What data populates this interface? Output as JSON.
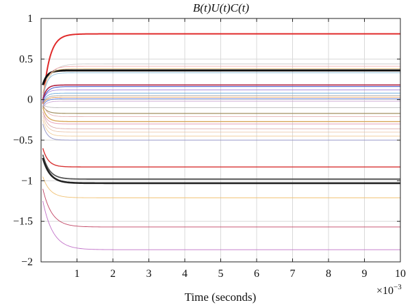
{
  "chart_data": {
    "type": "line",
    "title": "B(t)U(t)C(t)",
    "xlabel": "Time (seconds)",
    "x_multiplier_base": "×10",
    "x_multiplier_exp": "−3",
    "xlim": [
      0,
      10
    ],
    "ylim": [
      -2,
      1
    ],
    "xticks": [
      1,
      2,
      3,
      4,
      5,
      6,
      7,
      8,
      9,
      10
    ],
    "yticks": [
      1,
      0.5,
      0,
      -0.5,
      -1,
      -1.5,
      -2
    ],
    "ytick_labels": [
      "1",
      "0.5",
      "0",
      "−0.5",
      "−1",
      "−1.5",
      "−2"
    ],
    "grid": true,
    "series": [
      {
        "final": 0.81,
        "start": -0.05,
        "tau": 0.18,
        "color": "#e02a2a",
        "width": 2.0
      },
      {
        "final": 0.36,
        "start": 0.18,
        "tau": 0.12,
        "color": "#111111",
        "width": 3.0
      },
      {
        "final": 0.44,
        "start": 0.02,
        "tau": 0.2,
        "color": "#c8c8c8",
        "width": 0.8
      },
      {
        "final": 0.41,
        "start": 0.05,
        "tau": 0.15,
        "color": "#f2a0a0",
        "width": 0.8
      },
      {
        "final": 0.38,
        "start": 0.08,
        "tau": 0.14,
        "color": "#e6c07a",
        "width": 0.8
      },
      {
        "final": 0.33,
        "start": 0.02,
        "tau": 0.12,
        "color": "#7fb8d8",
        "width": 0.8
      },
      {
        "final": 0.18,
        "start": 0.0,
        "tau": 0.1,
        "color": "#b02040",
        "width": 1.6
      },
      {
        "final": 0.16,
        "start": -0.02,
        "tau": 0.12,
        "color": "#3a4fc8",
        "width": 1.0
      },
      {
        "final": 0.12,
        "start": -0.03,
        "tau": 0.1,
        "color": "#a07cd8",
        "width": 0.8
      },
      {
        "final": 0.08,
        "start": -0.04,
        "tau": 0.1,
        "color": "#5aa0d8",
        "width": 0.8
      },
      {
        "final": 0.05,
        "start": -0.05,
        "tau": 0.1,
        "color": "#9a9a9a",
        "width": 0.8
      },
      {
        "final": 0.03,
        "start": -0.06,
        "tau": 0.1,
        "color": "#e08a3a",
        "width": 0.8
      },
      {
        "final": 0.01,
        "start": -0.08,
        "tau": 0.1,
        "color": "#4a6cd8",
        "width": 0.8
      },
      {
        "final": -0.02,
        "start": -0.1,
        "tau": 0.1,
        "color": "#c8a0d0",
        "width": 0.8
      },
      {
        "final": -0.1,
        "start": -0.06,
        "tau": 0.1,
        "color": "#b0b0b0",
        "width": 0.8
      },
      {
        "final": -0.17,
        "start": -0.08,
        "tau": 0.12,
        "color": "#a09060",
        "width": 1.2
      },
      {
        "final": -0.21,
        "start": -0.05,
        "tau": 0.12,
        "color": "#e0a8a8",
        "width": 0.8
      },
      {
        "final": -0.27,
        "start": -0.1,
        "tau": 0.12,
        "color": "#d8a85a",
        "width": 1.4
      },
      {
        "final": -0.3,
        "start": -0.15,
        "tau": 0.12,
        "color": "#e6a0b8",
        "width": 1.0
      },
      {
        "final": -0.36,
        "start": -0.15,
        "tau": 0.12,
        "color": "#d8a0a0",
        "width": 0.8
      },
      {
        "final": -0.4,
        "start": -0.2,
        "tau": 0.12,
        "color": "#e8c0a0",
        "width": 0.8
      },
      {
        "final": -0.45,
        "start": -0.25,
        "tau": 0.12,
        "color": "#f0c890",
        "width": 0.8
      },
      {
        "final": -0.5,
        "start": -0.3,
        "tau": 0.12,
        "color": "#9898c8",
        "width": 1.0
      },
      {
        "final": -0.83,
        "start": -0.6,
        "tau": 0.15,
        "color": "#d83030",
        "width": 1.4
      },
      {
        "final": -0.98,
        "start": -0.68,
        "tau": 0.18,
        "color": "#555555",
        "width": 1.8
      },
      {
        "final": -1.03,
        "start": -0.72,
        "tau": 0.2,
        "color": "#222222",
        "width": 2.6
      },
      {
        "final": -1.21,
        "start": -0.95,
        "tau": 0.2,
        "color": "#f0c070",
        "width": 0.9
      },
      {
        "final": -1.57,
        "start": -1.1,
        "tau": 0.25,
        "color": "#c04060",
        "width": 0.9
      },
      {
        "final": -1.85,
        "start": -1.25,
        "tau": 0.28,
        "color": "#c070c8",
        "width": 0.9
      }
    ]
  }
}
